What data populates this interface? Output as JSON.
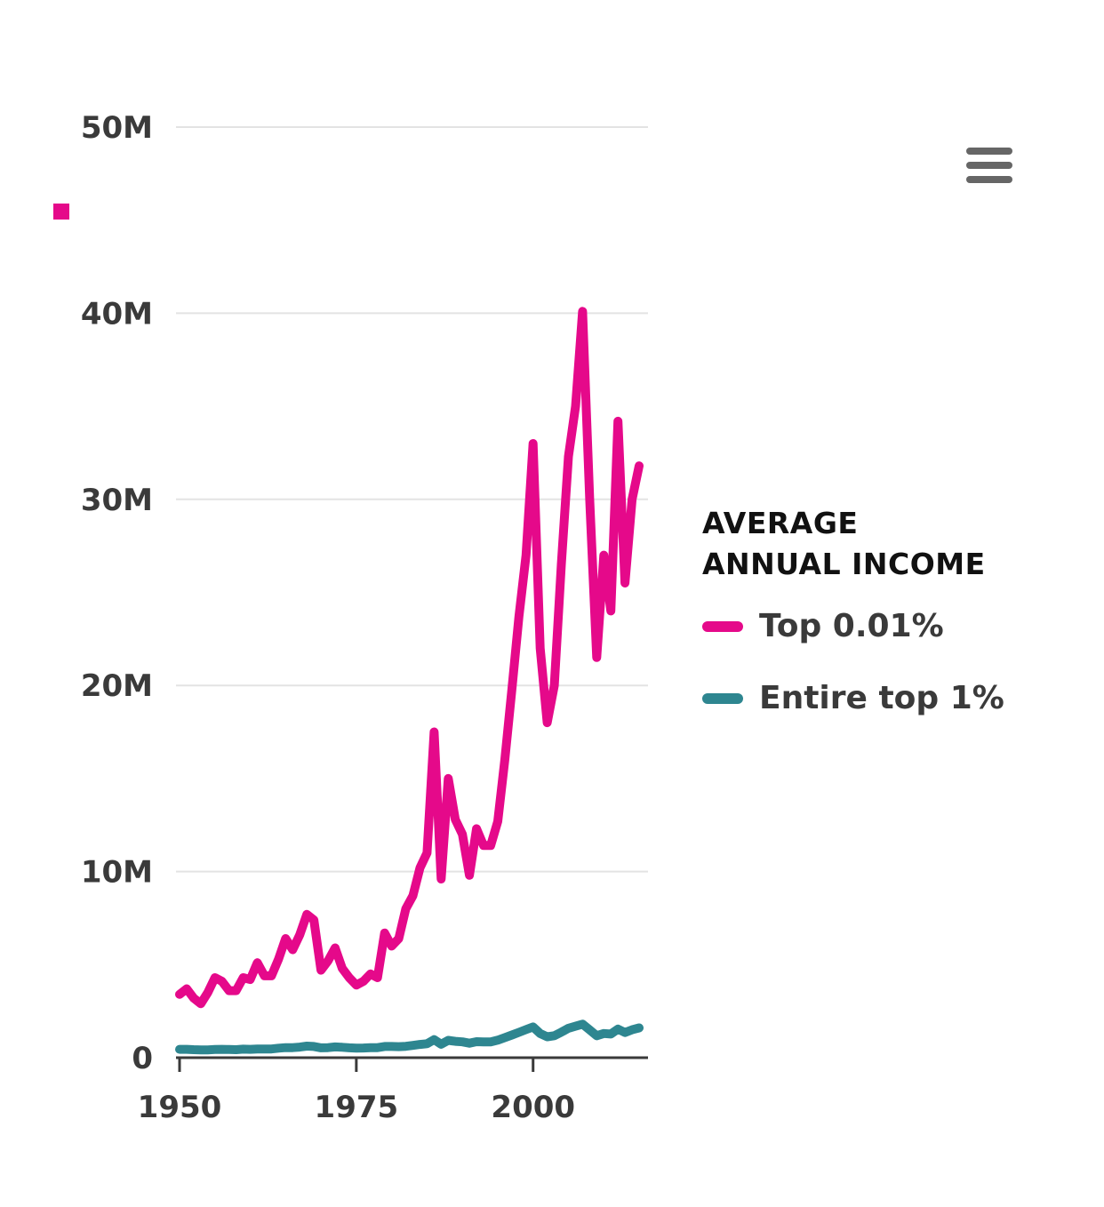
{
  "colors": {
    "top_001": "#e5098a",
    "top_1": "#2e8690",
    "text": "#3a3a3a",
    "grid": "#e3e3e3"
  },
  "icons": {
    "menu": "hamburger-menu-icon",
    "marker": "pink-square-marker"
  },
  "legend": {
    "title_line1": "AVERAGE",
    "title_line2": "ANNUAL INCOME",
    "items": [
      {
        "label": "Top 0.01%"
      },
      {
        "label": "Entire top 1%"
      }
    ]
  },
  "chart_data": {
    "type": "line",
    "xlim": [
      1950,
      2016
    ],
    "ylim": [
      0,
      50000000
    ],
    "x_ticks": [
      1950,
      1975,
      2000
    ],
    "x_tick_labels": [
      "1950",
      "1975",
      "2000"
    ],
    "y_ticks": [
      0,
      10000000,
      20000000,
      30000000,
      40000000,
      50000000
    ],
    "y_tick_labels": [
      "0",
      "10M",
      "20M",
      "30M",
      "40M",
      "50M"
    ],
    "grid": true,
    "legend_position": "right",
    "x": [
      1950,
      1951,
      1952,
      1953,
      1954,
      1955,
      1956,
      1957,
      1958,
      1959,
      1960,
      1961,
      1962,
      1963,
      1964,
      1965,
      1966,
      1967,
      1968,
      1969,
      1970,
      1971,
      1972,
      1973,
      1974,
      1975,
      1976,
      1977,
      1978,
      1979,
      1980,
      1981,
      1982,
      1983,
      1984,
      1985,
      1986,
      1987,
      1988,
      1989,
      1990,
      1991,
      1992,
      1993,
      1994,
      1995,
      1996,
      1997,
      1998,
      1999,
      2000,
      2001,
      2002,
      2003,
      2004,
      2005,
      2006,
      2007,
      2008,
      2009,
      2010,
      2011,
      2012,
      2013,
      2014,
      2015
    ],
    "series": [
      {
        "name": "Top 0.01%",
        "values": [
          3400000,
          3700000,
          3200000,
          2900000,
          3500000,
          4300000,
          4100000,
          3600000,
          3600000,
          4300000,
          4200000,
          5100000,
          4400000,
          4400000,
          5300000,
          6400000,
          5800000,
          6600000,
          7700000,
          7400000,
          4700000,
          5200000,
          5900000,
          4800000,
          4300000,
          3900000,
          4100000,
          4500000,
          4300000,
          6700000,
          6000000,
          6400000,
          8000000,
          8700000,
          10200000,
          11000000,
          17500000,
          9600000,
          15000000,
          12800000,
          12000000,
          9800000,
          12300000,
          11400000,
          11400000,
          12700000,
          16000000,
          19800000,
          23700000,
          27000000,
          33000000,
          22000000,
          18000000,
          20000000,
          26500000,
          32300000,
          35000000,
          40100000,
          30000000,
          21500000,
          27000000,
          24000000,
          34200000,
          25500000,
          30000000,
          31800000
        ]
      },
      {
        "name": "Entire top 1%",
        "values": [
          450000,
          450000,
          430000,
          420000,
          420000,
          440000,
          450000,
          440000,
          430000,
          460000,
          450000,
          470000,
          470000,
          470000,
          510000,
          540000,
          540000,
          570000,
          620000,
          600000,
          530000,
          540000,
          580000,
          560000,
          530000,
          510000,
          520000,
          540000,
          540000,
          600000,
          600000,
          590000,
          610000,
          660000,
          710000,
          750000,
          970000,
          720000,
          930000,
          880000,
          850000,
          780000,
          860000,
          850000,
          850000,
          940000,
          1080000,
          1220000,
          1360000,
          1510000,
          1650000,
          1300000,
          1120000,
          1180000,
          1370000,
          1580000,
          1690000,
          1800000,
          1490000,
          1180000,
          1300000,
          1270000,
          1540000,
          1350000,
          1500000,
          1600000
        ]
      }
    ]
  }
}
